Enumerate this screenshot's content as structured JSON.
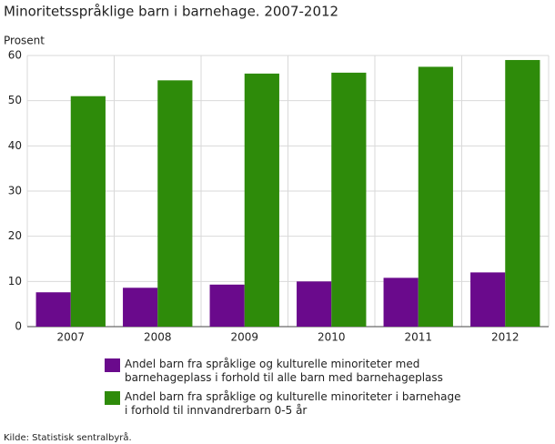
{
  "chart_data": {
    "type": "bar",
    "title": "Minoritetsspråklige barn i barnehage. 2007-2012",
    "y_label": "Prosent",
    "categories": [
      "2007",
      "2008",
      "2009",
      "2010",
      "2011",
      "2012"
    ],
    "series": [
      {
        "name": "Andel barn fra språklige og kulturelle minoriteter med barnehageplass i forhold til alle barn med barnehageplass",
        "color": "#6a0a8c",
        "values": [
          7.6,
          8.6,
          9.3,
          10.0,
          10.8,
          12.0
        ]
      },
      {
        "name": "Andel barn fra språklige og kulturelle minoriteter i barnehage i forhold til innvandrerbarn 0-5 år",
        "color": "#2e8b0a",
        "values": [
          51.0,
          54.5,
          56.0,
          56.2,
          57.5,
          59.0
        ]
      }
    ],
    "ylim": [
      0,
      60
    ],
    "yticks": [
      0,
      10,
      20,
      30,
      40,
      50,
      60
    ],
    "grid": true,
    "source": "Kilde: Statistisk sentralbyrå."
  }
}
